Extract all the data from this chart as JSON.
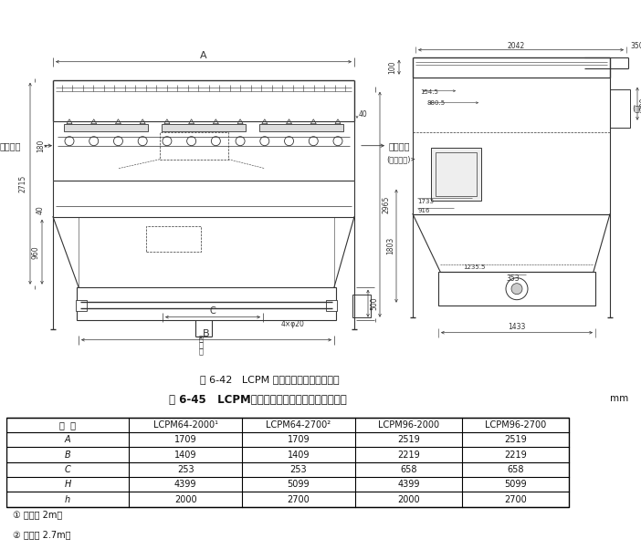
{
  "fig_caption": "图 6-42   LCPM 型侧喷式脉冲袋式除尘器",
  "table_title": "表 6-45   LCPM型侧噴式脉冲袋式除尘器外形尺寸",
  "table_unit": "mm",
  "col_headers": [
    "尺  寸",
    "LCPM64-2000¹",
    "LCPM64-2700²",
    "LCPM96-2000",
    "LCPM96-2700"
  ],
  "rows": [
    [
      "A",
      "1709",
      "1709",
      "2519",
      "2519"
    ],
    [
      "B",
      "1409",
      "1409",
      "2219",
      "2219"
    ],
    [
      "C",
      "253",
      "253",
      "658",
      "658"
    ],
    [
      "H",
      "4399",
      "5099",
      "4399",
      "5099"
    ],
    [
      "h",
      "2000",
      "2700",
      "2000",
      "2700"
    ]
  ],
  "footnotes": [
    "① 滤袋长 2m。",
    "② 滤袋长 2.7m。"
  ],
  "bg_color": "#ffffff",
  "line_color": "#333333",
  "text_color": "#111111"
}
